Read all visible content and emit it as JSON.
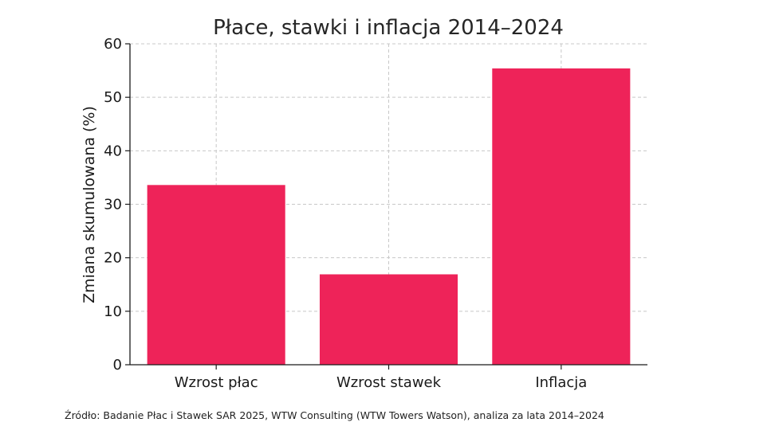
{
  "chart_data": {
    "type": "bar",
    "title": "Płace, stawki i inflacja 2014–2024",
    "xlabel": "",
    "ylabel": "Zmiana skumulowana (%)",
    "categories": [
      "Wzrost płac",
      "Wzrost stawek",
      "Inflacja"
    ],
    "values": [
      33.6,
      16.9,
      55.4
    ],
    "ylim": [
      0,
      60
    ],
    "yticks": [
      0,
      10,
      20,
      30,
      40,
      50,
      60
    ],
    "ytick_labels": [
      "0",
      "10",
      "20",
      "30",
      "40",
      "50",
      "60"
    ],
    "grid": true,
    "bar_color": "#ee2359"
  },
  "source_note": "Źródło: Badanie Płac i Stawek SAR 2025, WTW Consulting (WTW Towers Watson), analiza za lata 2014–2024"
}
